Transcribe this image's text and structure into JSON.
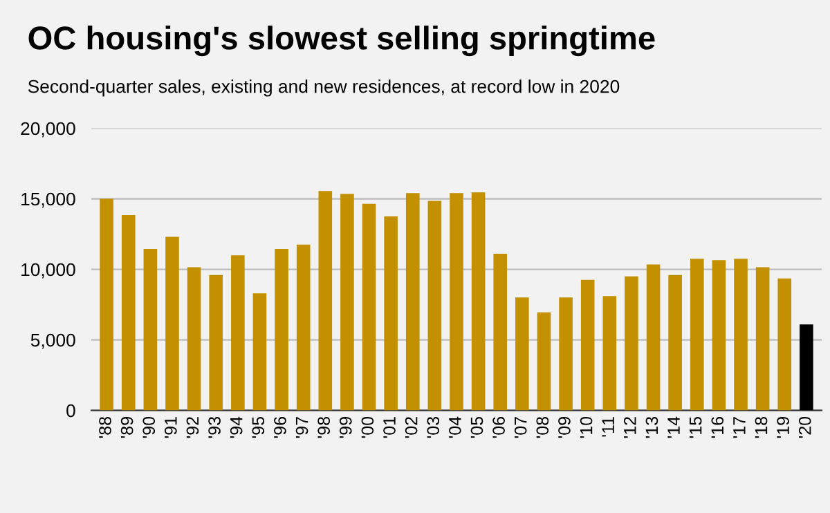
{
  "chart_data": {
    "type": "bar",
    "title": "OC housing's slowest selling springtime",
    "subtitle": "Second-quarter sales, existing and new residences, at record low in 2020",
    "categories": [
      "'88",
      "'89",
      "'90",
      "'91",
      "'92",
      "'93",
      "'94",
      "'95",
      "'96",
      "'97",
      "'98",
      "'99",
      "'00",
      "'01",
      "'02",
      "'03",
      "'04",
      "'05",
      "'06",
      "'07",
      "'08",
      "'09",
      "'10",
      "'11",
      "'12",
      "'13",
      "'14",
      "'15",
      "'16",
      "'17",
      "'18",
      "'19",
      "'20"
    ],
    "values": [
      15000,
      13850,
      11450,
      12300,
      10150,
      9600,
      11000,
      8300,
      11450,
      11750,
      15550,
      15350,
      14650,
      13750,
      15400,
      14850,
      15400,
      15450,
      11100,
      8000,
      6950,
      8000,
      9250,
      8100,
      9500,
      10350,
      9600,
      10750,
      10650,
      10750,
      10150,
      9350,
      6100
    ],
    "colors": [
      "#c29000",
      "#c29000",
      "#c29000",
      "#c29000",
      "#c29000",
      "#c29000",
      "#c29000",
      "#c29000",
      "#c29000",
      "#c29000",
      "#c29000",
      "#c29000",
      "#c29000",
      "#c29000",
      "#c29000",
      "#c29000",
      "#c29000",
      "#c29000",
      "#c29000",
      "#c29000",
      "#c29000",
      "#c29000",
      "#c29000",
      "#c29000",
      "#c29000",
      "#c29000",
      "#c29000",
      "#c29000",
      "#c29000",
      "#c29000",
      "#c29000",
      "#c29000",
      "#000000"
    ],
    "ylim": [
      0,
      20000
    ],
    "yticks": [
      0,
      {
        "value": 5000,
        "label": "5,000"
      },
      {
        "value": 10000,
        "label": "10,000"
      },
      {
        "value": 15000,
        "label": "15,000"
      },
      {
        "value": 20000,
        "label": "20,000"
      }
    ],
    "grid": "y"
  }
}
